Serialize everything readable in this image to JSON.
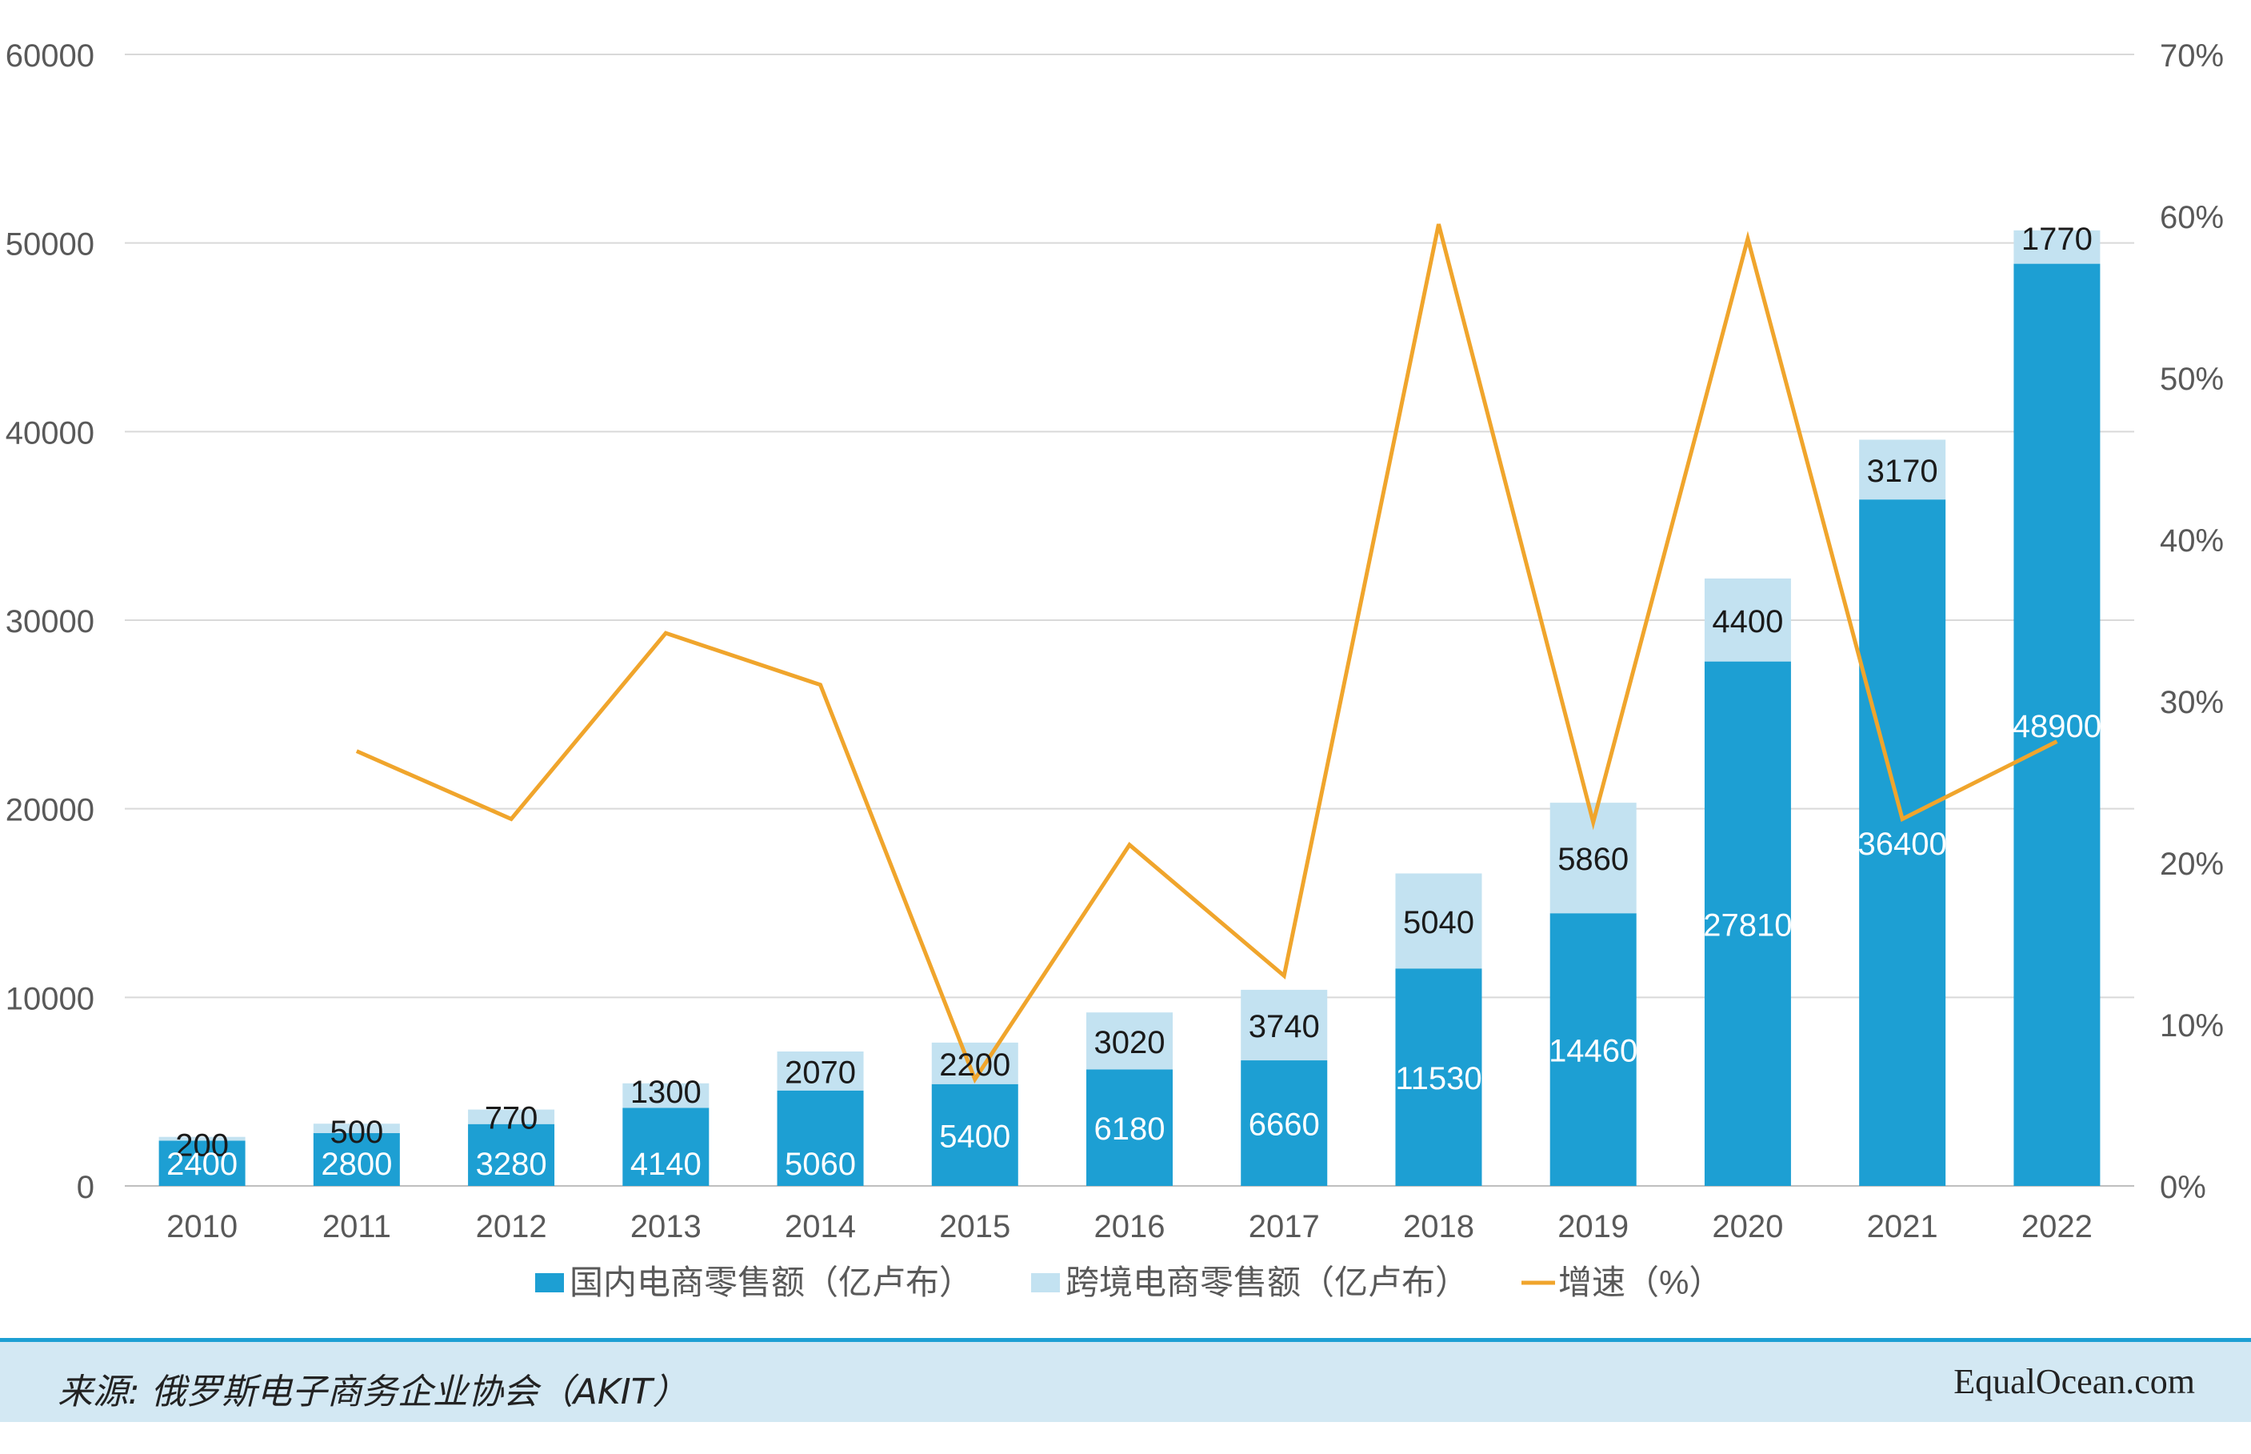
{
  "chart_data": {
    "type": "bar",
    "stacked": true,
    "categories": [
      "2010",
      "2011",
      "2012",
      "2013",
      "2014",
      "2015",
      "2016",
      "2017",
      "2018",
      "2019",
      "2020",
      "2021",
      "2022"
    ],
    "series": [
      {
        "name": "国内电商零售额（亿卢布）",
        "type": "bar",
        "color": "#1d9fd3",
        "axis": "left",
        "values": [
          2400,
          2800,
          3280,
          4140,
          5060,
          5400,
          6180,
          6660,
          11530,
          14460,
          27810,
          36400,
          48900
        ]
      },
      {
        "name": "跨境电商零售额（亿卢布）",
        "type": "bar",
        "color": "#c3e2f1",
        "axis": "left",
        "values": [
          200,
          500,
          770,
          1300,
          2070,
          2200,
          3020,
          3740,
          5040,
          5860,
          4400,
          3170,
          1770
        ]
      },
      {
        "name": "增速（%）",
        "type": "line",
        "color": "#f0a52c",
        "axis": "right",
        "values": [
          null,
          26.9,
          22.7,
          34.2,
          31.0,
          6.6,
          21.1,
          13.0,
          59.5,
          22.5,
          58.6,
          22.7,
          27.5
        ]
      }
    ],
    "y_left": {
      "min": 0,
      "max": 60000,
      "ticks": [
        "0",
        "10000",
        "20000",
        "30000",
        "40000",
        "50000",
        "60000"
      ]
    },
    "y_right": {
      "min": 0,
      "max": 70,
      "ticks": [
        "0%",
        "10%",
        "20%",
        "30%",
        "40%",
        "50%",
        "60%",
        "70%"
      ]
    },
    "grid": true,
    "legend_position": "bottom"
  },
  "footer": {
    "source": "来源: 俄罗斯电子商务企业协会（AKIT）",
    "brand": "EqualOcean.com"
  },
  "colors": {
    "domestic": "#1d9fd3",
    "cross_border": "#c3e2f1",
    "growth": "#f0a52c",
    "grid": "#d9d9d9",
    "axis_text": "#595959"
  }
}
